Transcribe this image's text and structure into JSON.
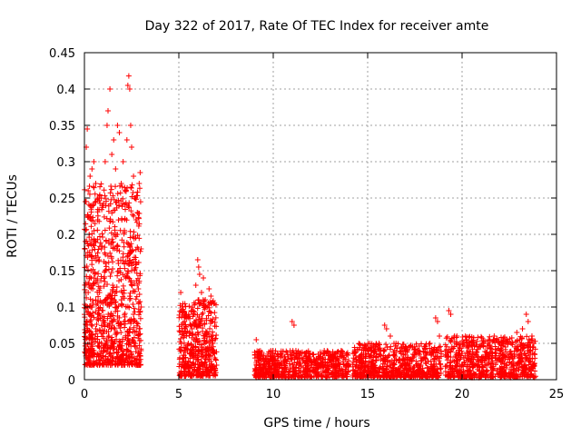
{
  "chart_data": {
    "type": "scatter",
    "title": "Day 322 of 2017, Rate Of TEC Index for receiver amte",
    "xlabel": "GPS time / hours",
    "ylabel": "ROTI / TECUs",
    "xlim": [
      0,
      25
    ],
    "ylim": [
      0,
      0.45
    ],
    "x_ticks": [
      0,
      5,
      10,
      15,
      20,
      25
    ],
    "x_tick_labels": [
      "0",
      "5",
      "10",
      "15",
      "20",
      "25"
    ],
    "y_ticks": [
      0,
      0.05,
      0.1,
      0.15,
      0.2,
      0.25,
      0.3,
      0.35,
      0.4,
      0.45
    ],
    "y_tick_labels": [
      "0",
      "0.05",
      "0.1",
      "0.15",
      "0.2",
      "0.25",
      "0.3",
      "0.35",
      "0.4",
      "0.45"
    ],
    "grid": true,
    "marker": "+",
    "marker_color": "#ff0000",
    "series": [
      {
        "name": "ROTI",
        "points": [
          [
            0.05,
            0.245
          ],
          [
            0.1,
            0.32
          ],
          [
            0.15,
            0.345
          ],
          [
            0.2,
            0.26
          ],
          [
            0.25,
            0.2
          ],
          [
            0.3,
            0.28
          ],
          [
            0.35,
            0.15
          ],
          [
            0.4,
            0.29
          ],
          [
            0.5,
            0.3
          ],
          [
            0.6,
            0.27
          ],
          [
            0.7,
            0.22
          ],
          [
            0.8,
            0.25
          ],
          [
            0.9,
            0.18
          ],
          [
            1.0,
            0.24
          ],
          [
            1.1,
            0.3
          ],
          [
            1.2,
            0.35
          ],
          [
            1.25,
            0.37
          ],
          [
            1.35,
            0.4
          ],
          [
            1.45,
            0.31
          ],
          [
            1.55,
            0.33
          ],
          [
            1.65,
            0.29
          ],
          [
            1.75,
            0.35
          ],
          [
            1.85,
            0.34
          ],
          [
            1.95,
            0.27
          ],
          [
            2.05,
            0.3
          ],
          [
            2.15,
            0.26
          ],
          [
            2.25,
            0.33
          ],
          [
            2.3,
            0.405
          ],
          [
            2.35,
            0.418
          ],
          [
            2.4,
            0.4
          ],
          [
            2.45,
            0.35
          ],
          [
            2.5,
            0.32
          ],
          [
            2.6,
            0.28
          ],
          [
            2.7,
            0.25
          ],
          [
            2.8,
            0.23
          ],
          [
            2.9,
            0.27
          ],
          [
            2.95,
            0.285
          ],
          [
            3.0,
            0.18
          ],
          [
            0.05,
            0.05
          ],
          [
            0.1,
            0.08
          ],
          [
            0.2,
            0.12
          ],
          [
            0.3,
            0.06
          ],
          [
            0.4,
            0.1
          ],
          [
            0.5,
            0.14
          ],
          [
            0.6,
            0.07
          ],
          [
            0.7,
            0.09
          ],
          [
            0.8,
            0.12
          ],
          [
            0.9,
            0.05
          ],
          [
            1.0,
            0.08
          ],
          [
            1.1,
            0.15
          ],
          [
            1.2,
            0.11
          ],
          [
            1.3,
            0.06
          ],
          [
            1.4,
            0.09
          ],
          [
            1.5,
            0.13
          ],
          [
            1.6,
            0.07
          ],
          [
            1.7,
            0.1
          ],
          [
            1.8,
            0.16
          ],
          [
            1.9,
            0.05
          ],
          [
            2.0,
            0.12
          ],
          [
            2.1,
            0.08
          ],
          [
            2.2,
            0.14
          ],
          [
            2.3,
            0.06
          ],
          [
            2.4,
            0.11
          ],
          [
            2.5,
            0.15
          ],
          [
            2.6,
            0.09
          ],
          [
            2.7,
            0.05
          ],
          [
            2.8,
            0.13
          ],
          [
            2.9,
            0.07
          ],
          [
            3.0,
            0.1
          ],
          [
            0.1,
            0.03
          ],
          [
            0.5,
            0.04
          ],
          [
            1.0,
            0.03
          ],
          [
            1.5,
            0.025
          ],
          [
            2.0,
            0.03
          ],
          [
            2.5,
            0.03
          ],
          [
            3.0,
            0.04
          ],
          [
            5.1,
            0.12
          ],
          [
            5.2,
            0.1
          ],
          [
            5.3,
            0.08
          ],
          [
            5.4,
            0.06
          ],
          [
            5.5,
            0.05
          ],
          [
            5.6,
            0.04
          ],
          [
            5.7,
            0.07
          ],
          [
            5.8,
            0.09
          ],
          [
            5.9,
            0.13
          ],
          [
            6.0,
            0.165
          ],
          [
            6.05,
            0.155
          ],
          [
            6.1,
            0.145
          ],
          [
            6.2,
            0.12
          ],
          [
            6.3,
            0.14
          ],
          [
            6.4,
            0.11
          ],
          [
            6.5,
            0.1
          ],
          [
            6.6,
            0.125
          ],
          [
            6.7,
            0.115
          ],
          [
            6.75,
            0.08
          ],
          [
            6.8,
            0.05
          ],
          [
            6.85,
            0.04
          ],
          [
            6.9,
            0.03
          ],
          [
            7.0,
            0.02
          ],
          [
            5.2,
            0.03
          ],
          [
            5.5,
            0.025
          ],
          [
            5.8,
            0.03
          ],
          [
            6.1,
            0.02
          ],
          [
            6.4,
            0.03
          ],
          [
            6.7,
            0.025
          ],
          [
            9.1,
            0.055
          ],
          [
            9.2,
            0.03
          ],
          [
            9.3,
            0.02
          ],
          [
            9.5,
            0.015
          ],
          [
            9.8,
            0.025
          ],
          [
            10.1,
            0.02
          ],
          [
            10.4,
            0.03
          ],
          [
            10.7,
            0.025
          ],
          [
            11.0,
            0.08
          ],
          [
            11.1,
            0.075
          ],
          [
            11.2,
            0.04
          ],
          [
            11.5,
            0.03
          ],
          [
            11.8,
            0.025
          ],
          [
            12.1,
            0.035
          ],
          [
            12.4,
            0.03
          ],
          [
            12.7,
            0.04
          ],
          [
            13.0,
            0.035
          ],
          [
            13.3,
            0.03
          ],
          [
            13.6,
            0.04
          ],
          [
            13.9,
            0.035
          ],
          [
            14.0,
            0.02
          ],
          [
            14.4,
            0.025
          ],
          [
            14.7,
            0.03
          ],
          [
            15.0,
            0.04
          ],
          [
            15.3,
            0.045
          ],
          [
            15.6,
            0.05
          ],
          [
            15.9,
            0.075
          ],
          [
            16.0,
            0.07
          ],
          [
            16.2,
            0.06
          ],
          [
            16.5,
            0.05
          ],
          [
            16.8,
            0.045
          ],
          [
            17.1,
            0.04
          ],
          [
            17.4,
            0.035
          ],
          [
            17.7,
            0.04
          ],
          [
            18.0,
            0.045
          ],
          [
            18.3,
            0.05
          ],
          [
            18.6,
            0.085
          ],
          [
            18.7,
            0.08
          ],
          [
            18.8,
            0.06
          ],
          [
            19.3,
            0.095
          ],
          [
            19.4,
            0.09
          ],
          [
            19.6,
            0.06
          ],
          [
            19.9,
            0.05
          ],
          [
            20.2,
            0.055
          ],
          [
            20.5,
            0.05
          ],
          [
            20.8,
            0.045
          ],
          [
            21.1,
            0.05
          ],
          [
            21.4,
            0.055
          ],
          [
            21.7,
            0.06
          ],
          [
            22.0,
            0.05
          ],
          [
            22.3,
            0.045
          ],
          [
            22.6,
            0.05
          ],
          [
            22.9,
            0.065
          ],
          [
            23.2,
            0.07
          ],
          [
            23.4,
            0.09
          ],
          [
            23.5,
            0.08
          ],
          [
            23.7,
            0.06
          ],
          [
            23.8,
            0.05
          ]
        ]
      }
    ]
  }
}
